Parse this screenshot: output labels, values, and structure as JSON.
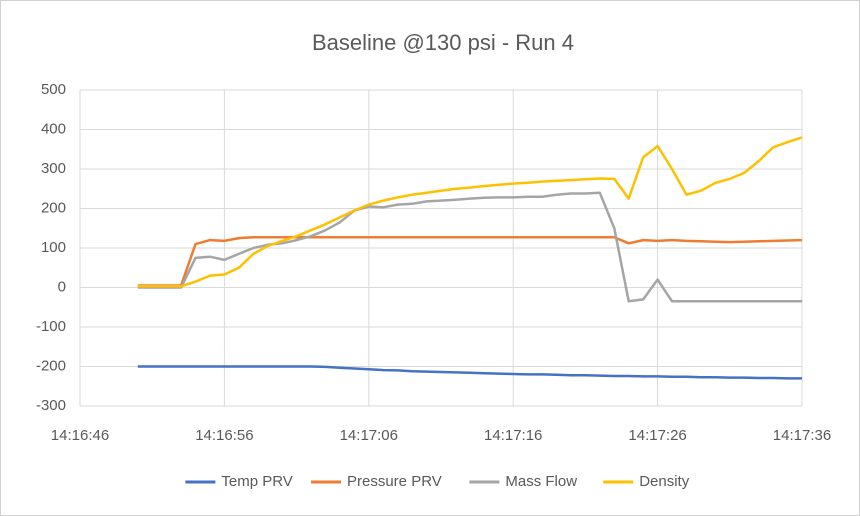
{
  "chart_data": {
    "type": "line",
    "title": "Baseline @130 psi - Run 4",
    "x": [
      "14:16:50",
      "14:16:51",
      "14:16:52",
      "14:16:53",
      "14:16:54",
      "14:16:55",
      "14:16:56",
      "14:16:57",
      "14:16:58",
      "14:16:59",
      "14:17:00",
      "14:17:01",
      "14:17:02",
      "14:17:03",
      "14:17:04",
      "14:17:05",
      "14:17:06",
      "14:17:07",
      "14:17:08",
      "14:17:09",
      "14:17:10",
      "14:17:11",
      "14:17:12",
      "14:17:13",
      "14:17:14",
      "14:17:15",
      "14:17:16",
      "14:17:17",
      "14:17:18",
      "14:17:19",
      "14:17:20",
      "14:17:21",
      "14:17:22",
      "14:17:23",
      "14:17:24",
      "14:17:25",
      "14:17:26",
      "14:17:27",
      "14:17:28",
      "14:17:29",
      "14:17:30",
      "14:17:31",
      "14:17:32",
      "14:17:33",
      "14:17:34",
      "14:17:35",
      "14:17:36"
    ],
    "series": [
      {
        "name": "Temp PRV",
        "color": "#4472c4",
        "values": [
          -200,
          -200,
          -200,
          -200,
          -200,
          -200,
          -200,
          -200,
          -200,
          -200,
          -200,
          -200,
          -200,
          -201,
          -203,
          -205,
          -207,
          -209,
          -210,
          -212,
          -213,
          -214,
          -215,
          -216,
          -217,
          -218,
          -219,
          -220,
          -220,
          -221,
          -222,
          -222,
          -223,
          -224,
          -224,
          -225,
          -225,
          -226,
          -226,
          -227,
          -227,
          -228,
          -228,
          -229,
          -229,
          -230,
          -230
        ]
      },
      {
        "name": "Pressure PRV",
        "color": "#ed7d31",
        "values": [
          5,
          5,
          5,
          5,
          110,
          120,
          118,
          125,
          127,
          127,
          127,
          127,
          127,
          127,
          127,
          127,
          127,
          127,
          127,
          127,
          127,
          127,
          127,
          127,
          127,
          127,
          127,
          127,
          127,
          127,
          127,
          127,
          127,
          127,
          112,
          120,
          118,
          120,
          118,
          117,
          116,
          115,
          116,
          117,
          118,
          119,
          120
        ]
      },
      {
        "name": "Mass Flow",
        "color": "#a5a5a5",
        "values": [
          0,
          0,
          0,
          0,
          75,
          78,
          70,
          85,
          100,
          108,
          112,
          120,
          130,
          145,
          165,
          195,
          205,
          203,
          210,
          212,
          218,
          220,
          222,
          225,
          227,
          228,
          228,
          230,
          230,
          235,
          238,
          238,
          240,
          150,
          -35,
          -30,
          20,
          -35,
          -35,
          -35,
          -35,
          -35,
          -35,
          -35,
          -35,
          -35,
          -35
        ]
      },
      {
        "name": "Density",
        "color": "#ffc000",
        "values": [
          3,
          3,
          3,
          3,
          15,
          30,
          33,
          50,
          85,
          105,
          118,
          130,
          145,
          160,
          178,
          195,
          210,
          220,
          228,
          235,
          240,
          245,
          250,
          253,
          257,
          260,
          263,
          265,
          268,
          270,
          272,
          274,
          276,
          275,
          225,
          330,
          358,
          300,
          235,
          245,
          265,
          275,
          290,
          320,
          355,
          368,
          380
        ]
      }
    ],
    "xlim": [
      "14:16:46",
      "14:17:36"
    ],
    "xticks": [
      "14:16:46",
      "14:16:56",
      "14:17:06",
      "14:17:16",
      "14:17:26",
      "14:17:36"
    ],
    "ylim": [
      -300,
      500
    ],
    "yticks": [
      -300,
      -200,
      -100,
      0,
      100,
      200,
      300,
      400,
      500
    ],
    "grid": true,
    "legend": "bottom"
  }
}
